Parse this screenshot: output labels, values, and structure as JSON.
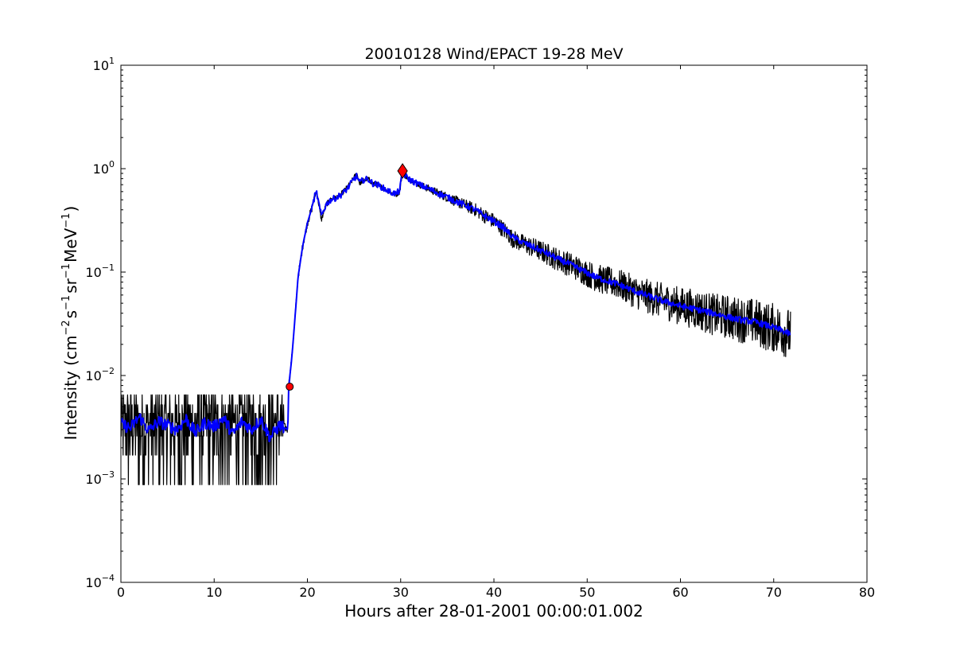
{
  "chart_data": {
    "type": "line",
    "title": "20010128 Wind/EPACT 19-28 MeV",
    "xlabel": "Hours after 28-01-2001 00:00:01.002",
    "ylabel": {
      "prefix": "Intensity (cm",
      "exp1": "−2",
      "mid1": "s",
      "exp2": "−1",
      "mid2": "sr",
      "exp3": "−1",
      "mid3": "MeV",
      "exp4": "−1",
      "suffix": ")"
    },
    "x_scale": "linear",
    "y_scale": "log",
    "xlim": [
      0,
      80
    ],
    "ylim": [
      0.0001,
      10
    ],
    "xticks": [
      0,
      10,
      20,
      30,
      40,
      50,
      60,
      70,
      80
    ],
    "xtick_labels": [
      "0",
      "10",
      "20",
      "30",
      "40",
      "50",
      "60",
      "70",
      "80"
    ],
    "yticks": [
      0.0001,
      0.001,
      0.01,
      0.1,
      1,
      10
    ],
    "ytick_labels": [
      {
        "base": "10",
        "exp": "−4"
      },
      {
        "base": "10",
        "exp": "−3"
      },
      {
        "base": "10",
        "exp": "−2"
      },
      {
        "base": "10",
        "exp": "−1"
      },
      {
        "base": "10",
        "exp": "0"
      },
      {
        "base": "10",
        "exp": "1"
      }
    ],
    "grid": false,
    "series": [
      {
        "color": "#000000",
        "x": [
          0,
          1,
          2,
          3,
          4,
          5,
          6,
          7,
          8,
          9,
          10,
          11,
          12,
          13,
          14,
          15,
          16,
          17,
          17.9,
          18,
          18.3,
          18.6,
          19,
          19.5,
          20,
          20.5,
          20.8,
          21,
          21.3,
          21.5,
          22,
          22.5,
          23,
          23.5,
          24,
          24.5,
          25,
          25.3,
          25.6,
          26,
          26.5,
          27,
          27.5,
          28,
          28.5,
          29,
          29.5,
          29.9,
          30.2,
          30.5,
          31,
          32,
          33,
          34,
          35,
          36,
          37,
          38,
          39,
          40,
          41,
          42,
          43,
          44,
          45,
          46,
          47,
          48,
          49,
          50,
          51,
          52,
          53,
          54,
          55,
          56,
          57,
          58,
          59,
          60,
          61,
          62,
          63,
          64,
          65,
          66,
          67,
          68,
          69,
          70,
          71,
          71.8
        ],
        "y": [
          0.0035,
          0.003,
          0.0045,
          0.002,
          0.0038,
          0.0032,
          0.0028,
          0.0042,
          0.0025,
          0.0036,
          0.0031,
          0.0045,
          0.0022,
          0.0037,
          0.0029,
          0.0041,
          0.0027,
          0.0034,
          0.003,
          0.008,
          0.014,
          0.03,
          0.09,
          0.18,
          0.3,
          0.42,
          0.55,
          0.6,
          0.4,
          0.32,
          0.45,
          0.5,
          0.52,
          0.55,
          0.62,
          0.7,
          0.82,
          0.9,
          0.72,
          0.78,
          0.8,
          0.72,
          0.7,
          0.66,
          0.62,
          0.58,
          0.56,
          0.6,
          0.95,
          0.85,
          0.78,
          0.7,
          0.64,
          0.58,
          0.53,
          0.48,
          0.44,
          0.4,
          0.35,
          0.31,
          0.26,
          0.21,
          0.19,
          0.175,
          0.16,
          0.145,
          0.13,
          0.12,
          0.108,
          0.097,
          0.088,
          0.082,
          0.078,
          0.072,
          0.065,
          0.06,
          0.056,
          0.053,
          0.05,
          0.047,
          0.045,
          0.043,
          0.04,
          0.038,
          0.037,
          0.035,
          0.034,
          0.033,
          0.03,
          0.029,
          0.027,
          0.025
        ]
      },
      {
        "color": "#0000ff",
        "x": [
          0,
          1,
          2,
          3,
          4,
          5,
          6,
          7,
          8,
          9,
          10,
          11,
          12,
          13,
          14,
          15,
          16,
          17,
          17.9,
          18,
          18.3,
          18.6,
          19,
          19.5,
          20,
          20.5,
          20.8,
          21,
          21.3,
          21.5,
          22,
          22.5,
          23,
          23.5,
          24,
          24.5,
          25,
          25.3,
          25.6,
          26,
          26.5,
          27,
          27.5,
          28,
          28.5,
          29,
          29.5,
          29.9,
          30.2,
          30.5,
          31,
          32,
          33,
          34,
          35,
          36,
          37,
          38,
          39,
          40,
          41,
          42,
          43,
          44,
          45,
          46,
          47,
          48,
          49,
          50,
          51,
          52,
          53,
          54,
          55,
          56,
          57,
          58,
          59,
          60,
          61,
          62,
          63,
          64,
          65,
          66,
          67,
          68,
          69,
          70,
          71,
          71.8
        ],
        "y": [
          0.0034,
          0.0031,
          0.004,
          0.0029,
          0.0036,
          0.0033,
          0.003,
          0.0038,
          0.0028,
          0.0035,
          0.0032,
          0.0039,
          0.0027,
          0.0036,
          0.003,
          0.0038,
          0.0025,
          0.0033,
          0.003,
          0.008,
          0.014,
          0.03,
          0.09,
          0.18,
          0.3,
          0.42,
          0.55,
          0.58,
          0.42,
          0.35,
          0.45,
          0.5,
          0.52,
          0.55,
          0.6,
          0.68,
          0.8,
          0.85,
          0.73,
          0.78,
          0.79,
          0.72,
          0.7,
          0.66,
          0.62,
          0.59,
          0.57,
          0.62,
          0.92,
          0.85,
          0.78,
          0.7,
          0.64,
          0.58,
          0.53,
          0.48,
          0.44,
          0.4,
          0.35,
          0.31,
          0.27,
          0.22,
          0.195,
          0.178,
          0.162,
          0.147,
          0.132,
          0.121,
          0.109,
          0.098,
          0.089,
          0.083,
          0.078,
          0.072,
          0.066,
          0.061,
          0.057,
          0.053,
          0.05,
          0.047,
          0.045,
          0.043,
          0.041,
          0.039,
          0.037,
          0.035,
          0.034,
          0.033,
          0.031,
          0.029,
          0.027,
          0.025
        ]
      }
    ],
    "markers": [
      {
        "shape": "circle",
        "x": 18.1,
        "y": 0.0078,
        "color": "#ff0000"
      },
      {
        "shape": "diamond",
        "x": 30.2,
        "y": 0.95,
        "color": "#ff0000"
      }
    ],
    "noise": {
      "floor_hours": [
        0,
        17.5
      ],
      "floor_min_y": 0.00088,
      "floor_max_y": 0.0065,
      "wiggle_start_hours": 20.5
    }
  }
}
